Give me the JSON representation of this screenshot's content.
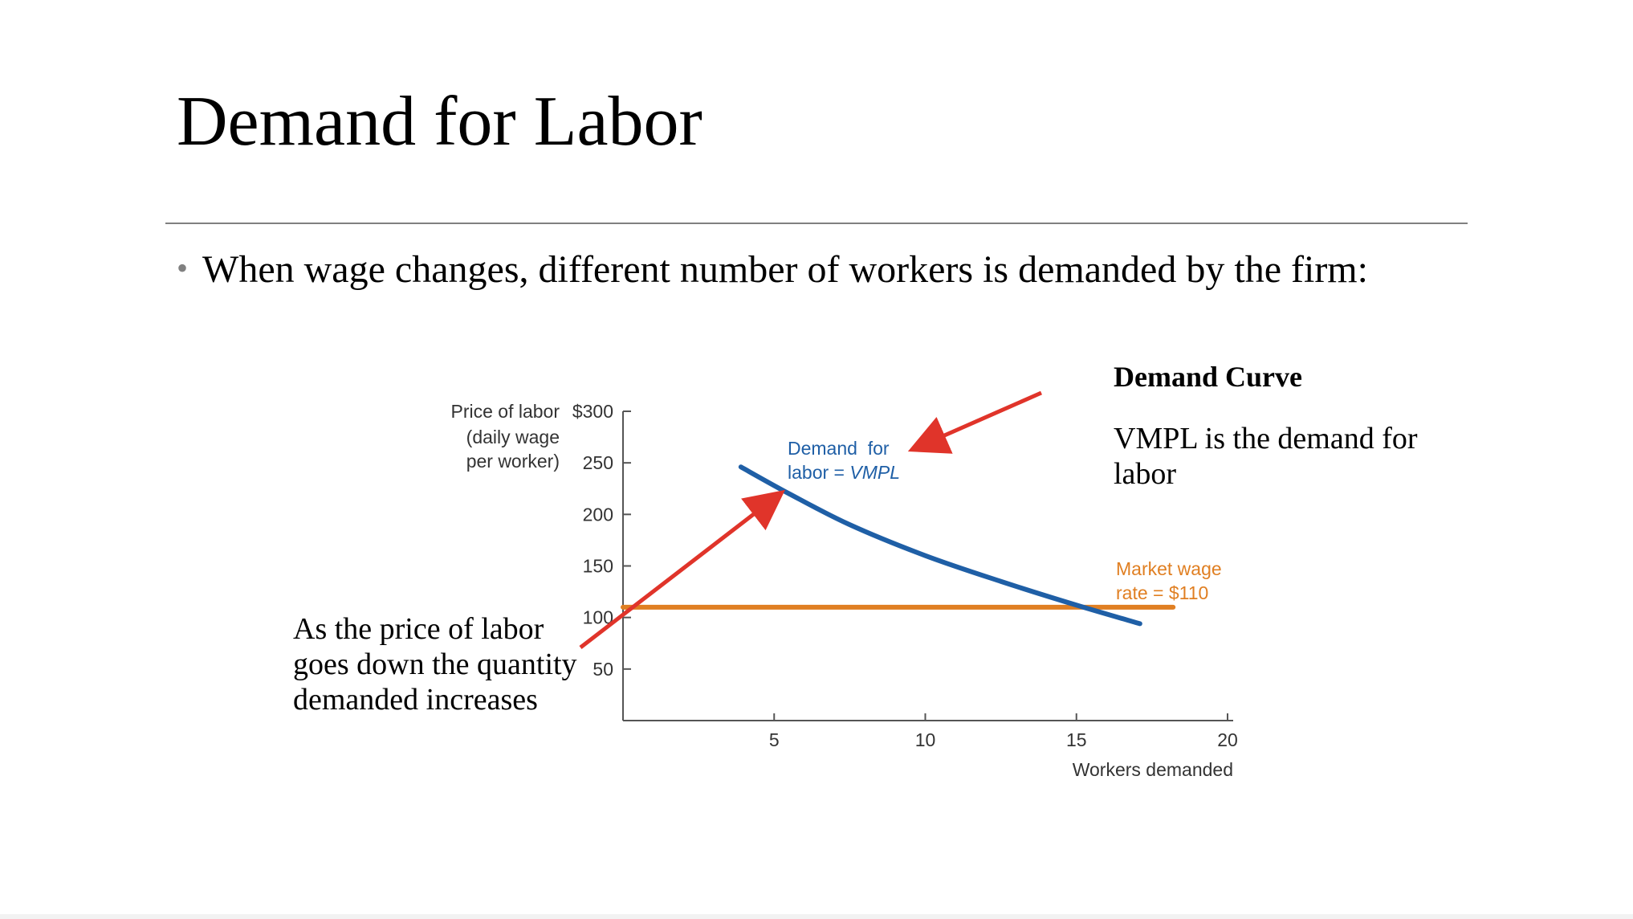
{
  "slide": {
    "title": "Demand for Labor",
    "bullet": "When wage changes, different number of workers is demanded by the firm:",
    "note_title": "Demand Curve",
    "note_body": "VMPL is the demand for labor",
    "left_note": "As the price of labor goes down the quantity demanded increases"
  },
  "chart_data": {
    "type": "line",
    "xlabel": "Workers demanded",
    "ylabel": [
      "Price of labor",
      "(daily wage",
      "per worker)"
    ],
    "xlim": [
      0,
      20
    ],
    "ylim": [
      0,
      300
    ],
    "x_ticks": [
      {
        "value": 5,
        "label": "5"
      },
      {
        "value": 10,
        "label": "10"
      },
      {
        "value": 15,
        "label": "15"
      },
      {
        "value": 20,
        "label": "20"
      }
    ],
    "y_ticks": [
      {
        "value": 50,
        "label": "50"
      },
      {
        "value": 100,
        "label": "100"
      },
      {
        "value": 150,
        "label": "150"
      },
      {
        "value": 200,
        "label": "200"
      },
      {
        "value": 250,
        "label": "250"
      },
      {
        "value": 300,
        "label": "$300"
      }
    ],
    "grid": false,
    "series": [
      {
        "name": "Demand for labor = VMPL",
        "label_lines": [
          "Demand  for",
          "labor = ",
          "VMPL"
        ],
        "color": "#1f5fa6",
        "x": [
          3.9,
          5.5,
          7.5,
          10,
          12.5,
          15,
          17.1
        ],
        "y": [
          246,
          220,
          190,
          160,
          135,
          112,
          94
        ]
      },
      {
        "name": "Market wage rate = $110",
        "label_lines": [
          "Market wage",
          "rate = $110"
        ],
        "color": "#e07f22",
        "x": [
          0,
          18.2
        ],
        "y": [
          110,
          110
        ]
      }
    ],
    "annotations": [
      {
        "type": "arrow",
        "color": "#e0342a",
        "from_ref": "note_title",
        "to": {
          "x": 9.5,
          "y": 262
        }
      },
      {
        "type": "arrow",
        "color": "#e0342a",
        "from_ref": "left_note",
        "to": {
          "x": 5.3,
          "y": 222
        }
      }
    ]
  }
}
